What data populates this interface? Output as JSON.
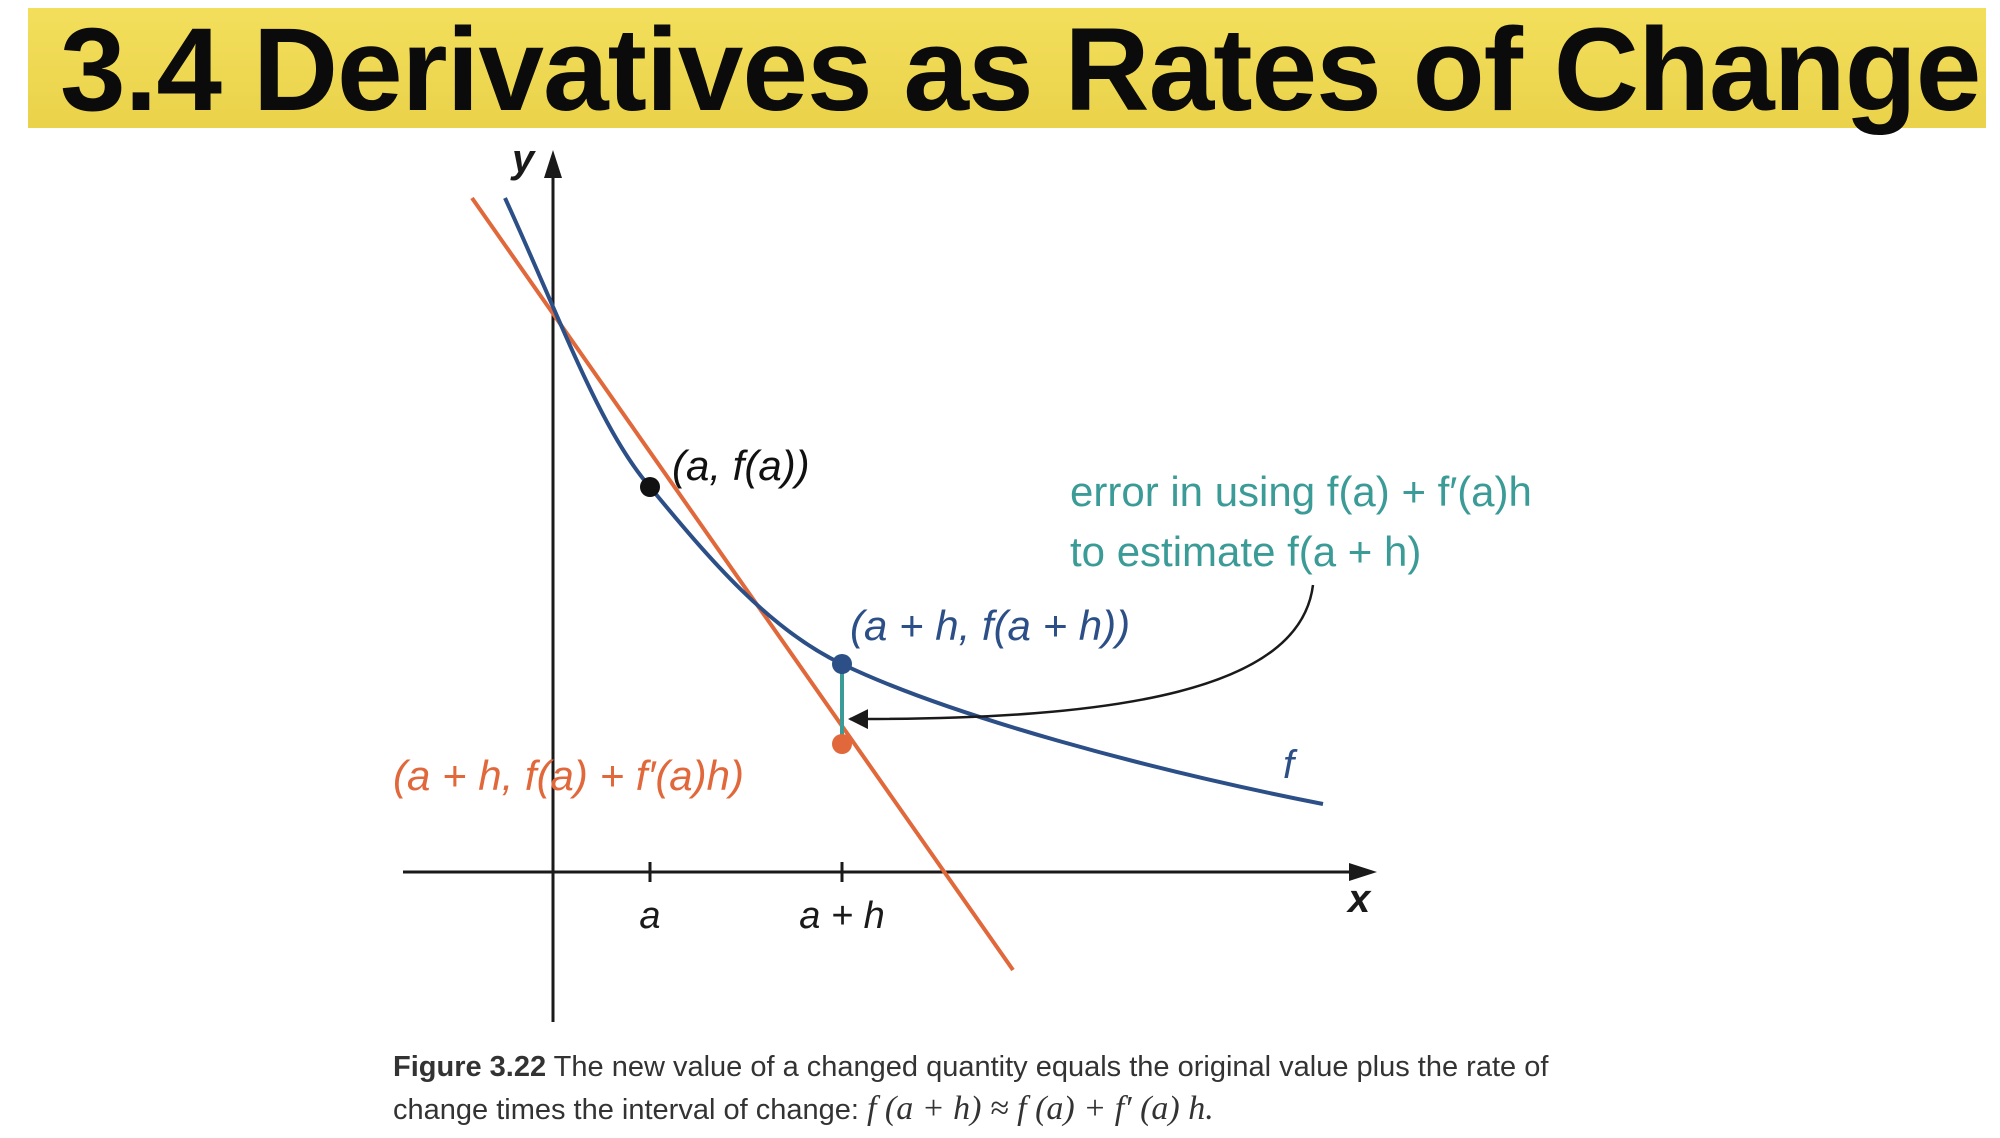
{
  "header": {
    "title": "3.4 Derivatives as Rates of Change",
    "banner_color": "#efd94f"
  },
  "figure": {
    "axis_y_label": "y",
    "axis_x_label": "x",
    "tick_a": "a",
    "tick_a_plus_h": "a + h",
    "point_a_label": "(a, f(a))",
    "point_ah_label": "(a + h, f(a + h))",
    "tangent_point_label": "(a + h, f(a) + f′(a)h)",
    "curve_label": "f",
    "error_label_line1": "error in using f(a) + f′(a)h",
    "error_label_line2": "to estimate f(a + h)",
    "colors": {
      "curve": "#2b4f86",
      "tangent": "#e0683a",
      "error": "#3a9b97",
      "axis": "#1a1a1a",
      "point_a": "#111111"
    }
  },
  "caption": {
    "label": "Figure 3.22",
    "text": "The new value of a changed quantity equals the original value plus the rate of change times the interval of change:",
    "formula": "f (a + h) ≈ f (a) + f′ (a) h."
  }
}
